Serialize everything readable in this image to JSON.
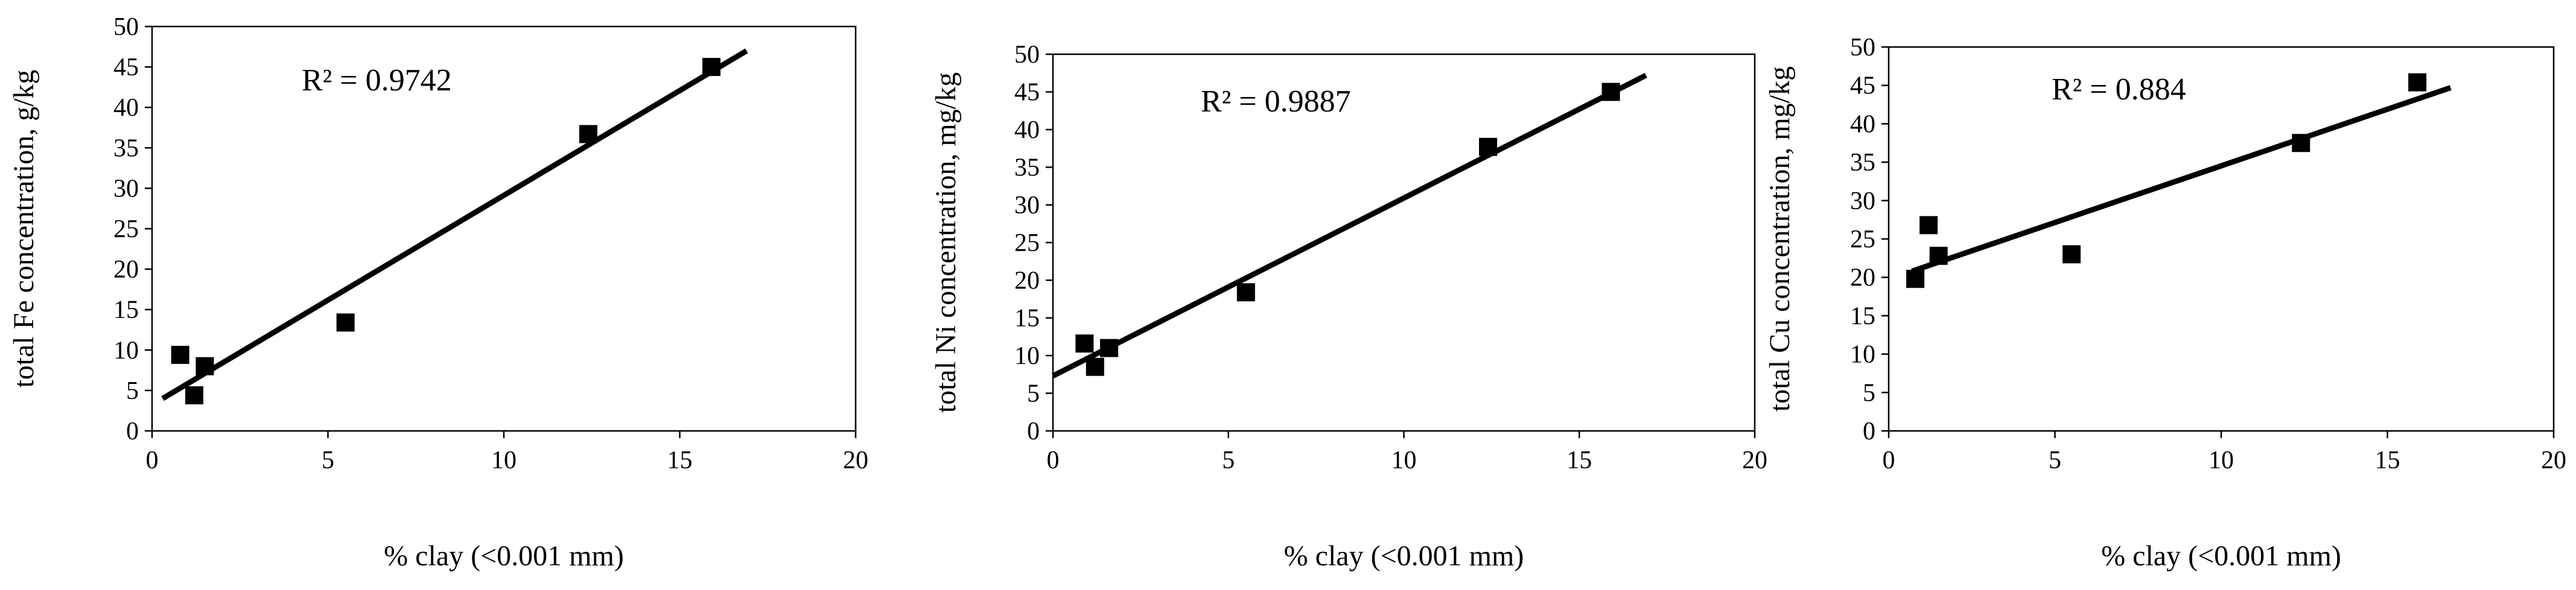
{
  "chart_data": [
    {
      "type": "scatter",
      "title": "",
      "xlabel": "% clay (<0.001 mm)",
      "ylabel": "total Fe concentration, g/kg",
      "xlim": [
        0,
        20
      ],
      "ylim": [
        0,
        50
      ],
      "x_ticks": [
        "0",
        "5",
        "10",
        "15",
        "20"
      ],
      "y_ticks": [
        "0",
        "5",
        "10",
        "15",
        "20",
        "25",
        "30",
        "35",
        "40",
        "45",
        "50"
      ],
      "annotation": "R² = 0.9742",
      "trendline": {
        "x": [
          0.3,
          16.9
        ],
        "y": [
          4.0,
          47.0
        ]
      },
      "series": [
        {
          "x": [
            0.8,
            1.2,
            1.5,
            5.5,
            12.4,
            15.9
          ],
          "y": [
            9.4,
            4.4,
            8.0,
            13.4,
            36.7,
            45.0
          ]
        }
      ],
      "grid": false,
      "legend": "none"
    },
    {
      "type": "scatter",
      "title": "",
      "xlabel": "% clay (<0.001 mm)",
      "ylabel": "total Ni concentration, mg/kg",
      "xlim": [
        0,
        20
      ],
      "ylim": [
        0,
        50
      ],
      "x_ticks": [
        "0",
        "5",
        "10",
        "15",
        "20"
      ],
      "y_ticks": [
        "0",
        "5",
        "10",
        "15",
        "20",
        "25",
        "30",
        "35",
        "40",
        "45",
        "50"
      ],
      "annotation": "R² = 0.9887",
      "trendline": {
        "x": [
          0.0,
          16.9
        ],
        "y": [
          7.3,
          47.2
        ]
      },
      "series": [
        {
          "x": [
            0.9,
            1.2,
            1.6,
            5.5,
            12.4,
            15.9
          ],
          "y": [
            11.6,
            8.5,
            11.0,
            18.4,
            37.7,
            45.0
          ]
        }
      ],
      "grid": false,
      "legend": "none"
    },
    {
      "type": "scatter",
      "title": "",
      "xlabel": "% clay (<0.001 mm)",
      "ylabel": "total Cu concentration, mg/kg",
      "xlim": [
        0,
        20
      ],
      "ylim": [
        0,
        50
      ],
      "x_ticks": [
        "0",
        "5",
        "10",
        "15",
        "20"
      ],
      "y_ticks": [
        "0",
        "5",
        "10",
        "15",
        "20",
        "25",
        "30",
        "35",
        "40",
        "45",
        "50"
      ],
      "annotation": "R² = 0.884",
      "trendline": {
        "x": [
          0.7,
          16.9
        ],
        "y": [
          20.8,
          44.7
        ]
      },
      "series": [
        {
          "x": [
            0.8,
            1.2,
            1.5,
            5.5,
            12.4,
            15.9
          ],
          "y": [
            19.8,
            26.8,
            22.8,
            23.0,
            37.5,
            45.4
          ]
        }
      ],
      "grid": false,
      "legend": "none"
    }
  ]
}
